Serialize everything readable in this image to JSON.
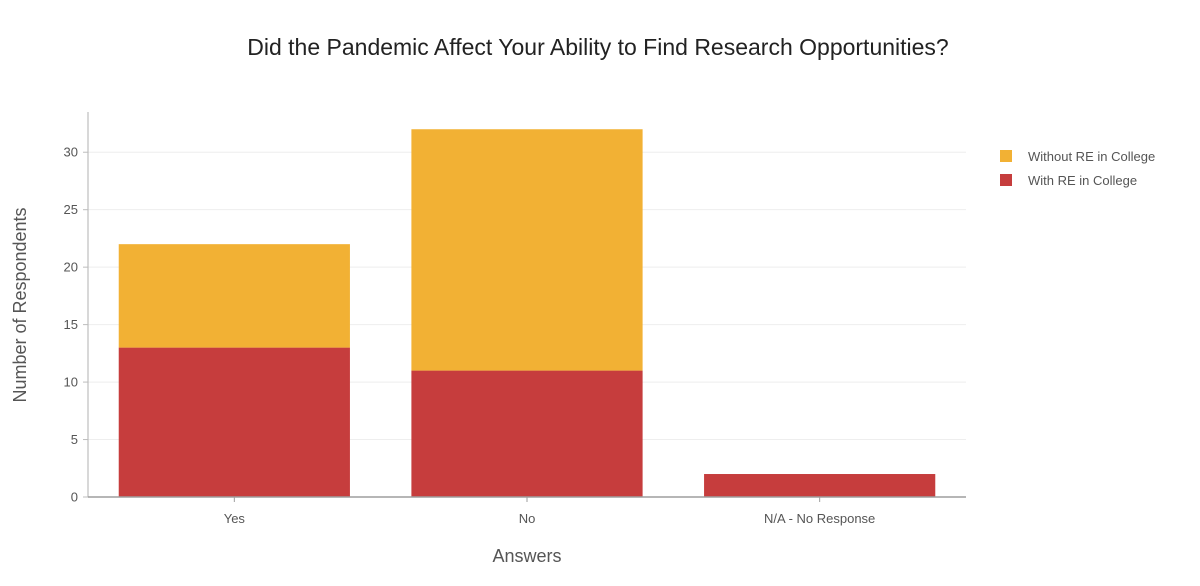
{
  "chart_data": {
    "type": "bar",
    "stacked": true,
    "title": "Did the Pandemic Affect Your Ability to Find Research Opportunities?",
    "xlabel": "Answers",
    "ylabel": "Number of Respondents",
    "categories": [
      "Yes",
      "No",
      "N/A - No Response"
    ],
    "series": [
      {
        "name": "With RE in College",
        "color": "#c63d3d",
        "values": [
          13,
          11,
          2
        ]
      },
      {
        "name": "Without RE in College",
        "color": "#f2b134",
        "values": [
          9,
          21,
          0
        ]
      }
    ],
    "ylim": [
      0,
      33.5
    ],
    "yticks": [
      0,
      5,
      10,
      15,
      20,
      25,
      30
    ],
    "grid": true,
    "legend": {
      "position": "right",
      "entries": [
        {
          "label": "Without RE in College",
          "color": "#f2b134"
        },
        {
          "label": "With RE in College",
          "color": "#c63d3d"
        }
      ]
    }
  }
}
